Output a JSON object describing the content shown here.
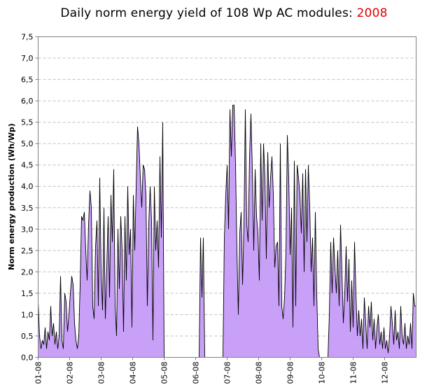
{
  "chart_data": {
    "type": "area",
    "title": "Daily norm energy yield of 108 Wp AC modules:",
    "title_year": "2008",
    "ylabel": "Norm energy production (Wh/Wp)",
    "xlabel": "",
    "ylim": [
      0,
      7.5
    ],
    "yticks": [
      "0,0",
      "0,5",
      "1,0",
      "1,5",
      "2,0",
      "2,5",
      "3,0",
      "3,5",
      "4,0",
      "4,5",
      "5,0",
      "5,5",
      "6,0",
      "6,5",
      "7,0",
      "7,5"
    ],
    "x_ticks": [
      "01-08",
      "02-08",
      "03-08",
      "04-08",
      "05-08",
      "06-08",
      "07-08",
      "08-08",
      "09-08",
      "10-08",
      "11-08",
      "12-08"
    ],
    "grid": "horizontal dashed",
    "colors": {
      "fill": "#c8a0f8",
      "line": "#000000",
      "title_year": "#e00000",
      "grid": "#c0c0c0"
    },
    "series": [
      {
        "values": [
          1.3,
          0.5,
          0.2,
          0.4,
          0.3,
          0.7,
          0.2,
          0.6,
          0.4,
          1.2,
          0.5,
          0.8,
          0.3,
          0.6,
          0.2,
          0.5,
          1.9,
          0.4,
          0.2,
          1.5,
          1.3,
          0.6,
          1.0,
          1.5,
          1.9,
          1.7,
          0.8,
          0.4,
          0.2,
          0.5,
          1.7,
          3.3,
          3.2,
          3.4,
          2.5,
          1.8,
          3.1,
          3.9,
          3.5,
          1.2,
          0.9,
          2.6,
          3.2,
          1.2,
          4.2,
          2.0,
          1.1,
          3.5,
          0.9,
          2.1,
          3.3,
          1.4,
          3.8,
          2.7,
          4.4,
          1.2,
          0.5,
          3.0,
          1.6,
          3.3,
          2.5,
          0.6,
          3.3,
          1.8,
          4.0,
          2.4,
          3.0,
          0.7,
          3.8,
          2.5,
          4.0,
          5.4,
          5.0,
          4.2,
          3.5,
          4.5,
          4.4,
          3.8,
          1.2,
          3.1,
          4.0,
          3.2,
          0.4,
          4.0,
          2.5,
          3.2,
          2.1,
          4.7,
          2.8,
          5.5,
          0,
          0,
          0,
          0,
          0,
          0,
          0,
          0,
          0,
          0,
          0,
          0,
          0,
          0,
          0,
          0,
          0,
          0,
          0,
          0,
          0,
          0,
          0,
          0,
          0,
          0,
          2.8,
          1.4,
          2.8,
          0,
          0,
          0,
          0,
          0,
          0,
          0,
          0,
          0,
          0,
          0,
          0,
          0,
          0,
          2.8,
          3.8,
          4.5,
          3.0,
          5.8,
          4.7,
          5.9,
          5.9,
          4.5,
          2.5,
          1.0,
          2.9,
          3.4,
          1.7,
          3.1,
          5.8,
          3.1,
          2.7,
          4.7,
          5.7,
          4.4,
          2.5,
          4.4,
          3.3,
          2.9,
          1.8,
          5.0,
          3.2,
          5.0,
          4.2,
          2.3,
          4.8,
          3.5,
          4.2,
          4.7,
          3.8,
          2.1,
          2.6,
          2.7,
          1.2,
          5.0,
          1.2,
          0.9,
          1.4,
          2.5,
          5.2,
          4.2,
          2.4,
          3.5,
          0.7,
          4.6,
          1.2,
          4.5,
          4.2,
          3.8,
          2.9,
          4.3,
          2.0,
          4.4,
          2.7,
          4.5,
          3.5,
          2.0,
          2.8,
          1.2,
          3.4,
          1.5,
          0.2,
          0,
          0,
          0,
          0,
          0,
          0,
          0,
          1.0,
          2.7,
          1.5,
          2.8,
          2.1,
          1.5,
          2.5,
          1.2,
          3.1,
          2.0,
          0.8,
          1.5,
          2.6,
          1.3,
          2.3,
          0.6,
          1.8,
          0.7,
          2.7,
          1.5,
          0.5,
          1.1,
          0.5,
          0.9,
          0.2,
          1.4,
          0.8,
          0.2,
          1.2,
          0.7,
          1.3,
          0.4,
          0.9,
          0.2,
          0.7,
          1.0,
          0.3,
          0.6,
          0.2,
          0.7,
          0.2,
          0.4,
          0.1,
          0.5,
          1.2,
          0.8,
          0.3,
          1.1,
          0.4,
          0.6,
          0.2,
          1.2,
          0.5,
          0.3,
          0.8,
          0.2,
          0.5,
          0.3,
          0.8,
          0.2,
          1.5,
          1.2,
          1.2
        ]
      }
    ]
  }
}
